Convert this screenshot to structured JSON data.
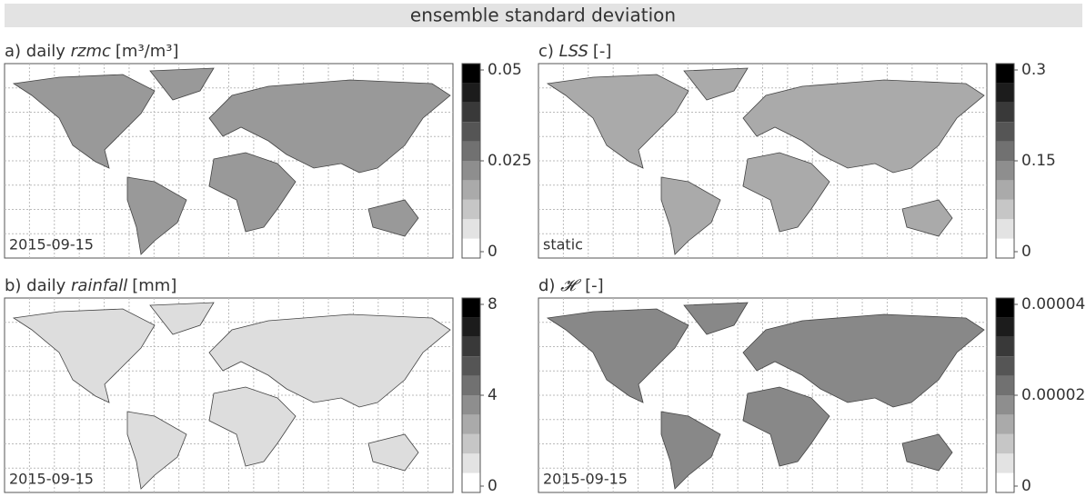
{
  "title": "ensemble standard deviation",
  "panels": [
    {
      "prefix": "a) daily ",
      "variable": "rzmc",
      "units": "[m³/m³]",
      "annotation": "2015-09-15",
      "colorbar_ticks": [
        0.05,
        0.025,
        0
      ]
    },
    {
      "prefix": "c) ",
      "variable": "LSS",
      "units": "[-]",
      "annotation": "static",
      "colorbar_ticks": [
        0.3,
        0.15,
        0
      ]
    },
    {
      "prefix": "b) daily ",
      "variable": "rainfall",
      "units": "[mm]",
      "annotation": "2015-09-15",
      "colorbar_ticks": [
        8,
        4,
        0
      ]
    },
    {
      "prefix": "d) ",
      "variable": "𝓗",
      "units": " [-]",
      "annotation": "2015-09-15",
      "colorbar_ticks": [
        4e-05,
        2e-05,
        0
      ]
    }
  ]
}
